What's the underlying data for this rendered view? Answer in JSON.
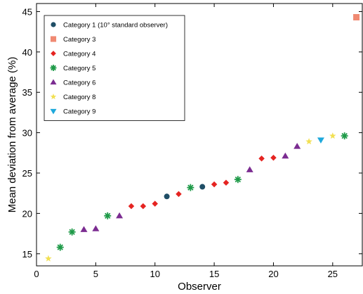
{
  "chart_data": {
    "type": "scatter",
    "title": "",
    "xlabel": "Observer",
    "ylabel": "Mean deviation from average (%)",
    "xlim": [
      0,
      27.5
    ],
    "ylim": [
      13.5,
      46
    ],
    "xticks": [
      0,
      5,
      10,
      15,
      20,
      25
    ],
    "yticks": [
      15,
      20,
      25,
      30,
      35,
      40,
      45
    ],
    "grid": false,
    "legend_position": "top-left",
    "series": [
      {
        "name": "Category 1 (10° standard observer)",
        "marker": "circle",
        "color": "#1f4e66",
        "points": [
          {
            "x": 11,
            "y": 22.1
          },
          {
            "x": 14,
            "y": 23.3
          }
        ]
      },
      {
        "name": "Category 3",
        "marker": "square",
        "color": "#f08a72",
        "points": [
          {
            "x": 27,
            "y": 44.3
          }
        ]
      },
      {
        "name": "Category 4",
        "marker": "diamond",
        "color": "#e52421",
        "points": [
          {
            "x": 8,
            "y": 20.9
          },
          {
            "x": 9,
            "y": 20.9
          },
          {
            "x": 10,
            "y": 21.2
          },
          {
            "x": 12,
            "y": 22.4
          },
          {
            "x": 15,
            "y": 23.6
          },
          {
            "x": 16,
            "y": 23.8
          },
          {
            "x": 19,
            "y": 26.8
          },
          {
            "x": 20,
            "y": 26.9
          }
        ]
      },
      {
        "name": "Category 5",
        "marker": "asterisk",
        "color": "#1e9a48",
        "points": [
          {
            "x": 2,
            "y": 15.8
          },
          {
            "x": 3,
            "y": 17.7
          },
          {
            "x": 6,
            "y": 19.7
          },
          {
            "x": 13,
            "y": 23.2
          },
          {
            "x": 17,
            "y": 24.2
          },
          {
            "x": 26,
            "y": 29.6
          }
        ]
      },
      {
        "name": "Category 6",
        "marker": "triangle-up",
        "color": "#7b2c91",
        "points": [
          {
            "x": 4,
            "y": 18.0
          },
          {
            "x": 5,
            "y": 18.1
          },
          {
            "x": 7,
            "y": 19.7
          },
          {
            "x": 18,
            "y": 25.4
          },
          {
            "x": 21,
            "y": 27.1
          },
          {
            "x": 22,
            "y": 28.3
          }
        ]
      },
      {
        "name": "Category 8",
        "marker": "star",
        "color": "#f2e052",
        "points": [
          {
            "x": 1,
            "y": 14.4
          },
          {
            "x": 23,
            "y": 28.9
          },
          {
            "x": 25,
            "y": 29.6
          }
        ]
      },
      {
        "name": "Category 9",
        "marker": "triangle-down",
        "color": "#1fa9dc",
        "points": [
          {
            "x": 24,
            "y": 29.1
          }
        ]
      }
    ]
  }
}
